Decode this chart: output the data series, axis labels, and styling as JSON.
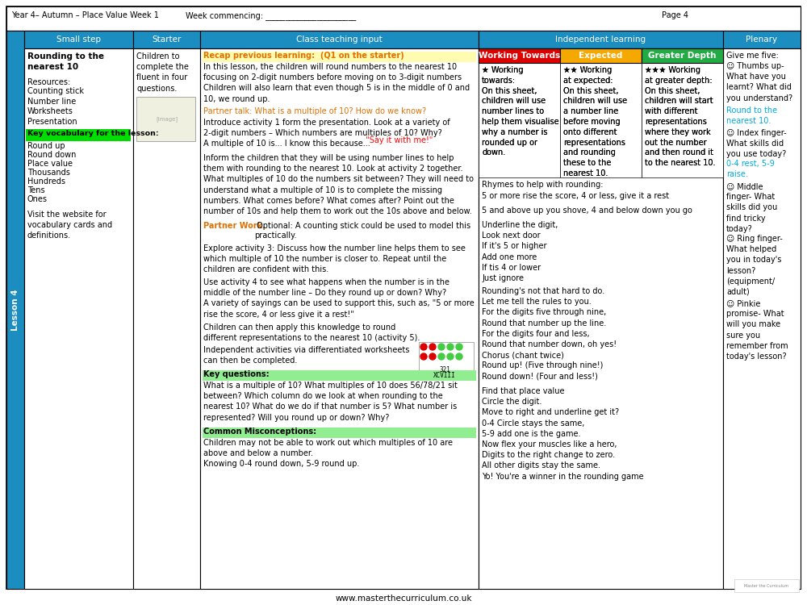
{
  "title_left": "Year 4– Autumn – Place Value Week 1",
  "title_mid": "Week commencing: _______________________",
  "title_right": "Page 4",
  "header_color": "#1b8dc0",
  "sidebar_color": "#1b8dc0",
  "col_headers": [
    "Small step",
    "Starter",
    "Class teaching input",
    "Independent learning",
    "Plenary"
  ],
  "lesson_label": "Lesson 4",
  "key_vocab_highlight": "#00dd00",
  "indep_col1_color": "#dd0000",
  "indep_col2_color": "#f5a800",
  "indep_col3_color": "#22aa44",
  "plenary_round_color": "#00aadd",
  "plenary_index_color": "#00aadd",
  "footer_text": "www.masterthecurriculum.co.uk",
  "bg_color": "#ffffff"
}
